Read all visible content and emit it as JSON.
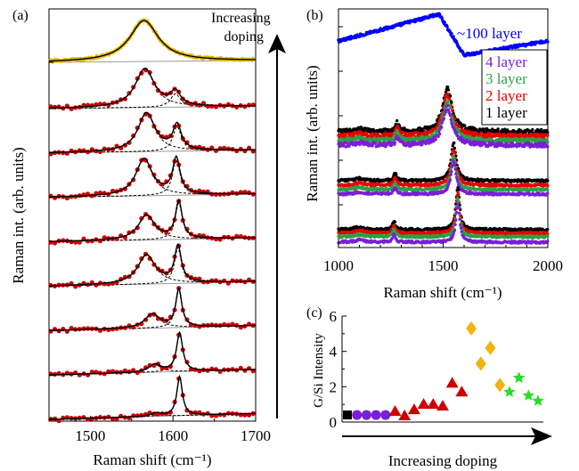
{
  "chart_data": [
    {
      "panel": "(a)",
      "type": "line",
      "xlabel": "Raman shift (cm⁻¹)",
      "ylabel": "Raman int. (arb. units)",
      "xlim": [
        1450,
        1700
      ],
      "xticks": [
        1500,
        1600,
        1700
      ],
      "annotation": "Increasing doping",
      "series": [
        {
          "trace": 1,
          "color": "#e6b800",
          "peaks": [
            {
              "center": 1565,
              "width": 42,
              "height": 1.0
            }
          ]
        },
        {
          "trace": 2,
          "color": "#cc0000",
          "peaks": [
            {
              "center": 1566,
              "width": 28,
              "height": 1.0
            },
            {
              "center": 1603,
              "width": 14,
              "height": 0.35
            }
          ]
        },
        {
          "trace": 3,
          "color": "#cc0000",
          "peaks": [
            {
              "center": 1568,
              "width": 25,
              "height": 0.85
            },
            {
              "center": 1605,
              "width": 12,
              "height": 0.55
            }
          ]
        },
        {
          "trace": 4,
          "color": "#cc0000",
          "peaks": [
            {
              "center": 1565,
              "width": 24,
              "height": 0.82
            },
            {
              "center": 1604,
              "width": 11,
              "height": 0.8
            }
          ]
        },
        {
          "trace": 5,
          "color": "#cc0000",
          "peaks": [
            {
              "center": 1568,
              "width": 24,
              "height": 0.6
            },
            {
              "center": 1607,
              "width": 10,
              "height": 0.9
            }
          ]
        },
        {
          "trace": 6,
          "color": "#cc0000",
          "peaks": [
            {
              "center": 1568,
              "width": 26,
              "height": 0.6
            },
            {
              "center": 1606,
              "width": 10,
              "height": 0.75
            }
          ]
        },
        {
          "trace": 7,
          "color": "#cc0000",
          "peaks": [
            {
              "center": 1575,
              "width": 22,
              "height": 0.35
            },
            {
              "center": 1607,
              "width": 9,
              "height": 0.95
            }
          ]
        },
        {
          "trace": 8,
          "color": "#cc0000",
          "peaks": [
            {
              "center": 1578,
              "width": 18,
              "height": 0.2
            },
            {
              "center": 1608,
              "width": 9,
              "height": 1.0
            }
          ]
        },
        {
          "trace": 9,
          "color": "#cc0000",
          "peaks": [
            {
              "center": 1580,
              "width": 15,
              "height": 0.08
            },
            {
              "center": 1608,
              "width": 8,
              "height": 1.0
            }
          ]
        }
      ]
    },
    {
      "panel": "(b)",
      "type": "line",
      "xlabel": "Raman shift (cm⁻¹)",
      "ylabel": "Raman int. (arb. units)",
      "xlim": [
        1000,
        2000
      ],
      "xticks": [
        1000,
        1500,
        2000
      ],
      "annotation": "~100 layer",
      "legend": [
        "4 layer",
        "3 layer",
        "2 layer",
        "1 layer"
      ],
      "series": [
        {
          "name": "4 layer",
          "color": "#7a1fd6"
        },
        {
          "name": "3 layer",
          "color": "#2f9e44"
        },
        {
          "name": "2 layer",
          "color": "#e60000"
        },
        {
          "name": "1 layer",
          "color": "#000000"
        }
      ],
      "groups": [
        {
          "group": "top",
          "g_center": 1520,
          "g_width": 55,
          "d_center": 1280
        },
        {
          "group": "middle",
          "g_center": 1550,
          "g_width": 30,
          "d_center": 1270
        },
        {
          "group": "bottom",
          "g_center": 1570,
          "g_width": 22,
          "d_center": 1265
        }
      ],
      "thick_trace": {
        "name": "~100 layer",
        "color": "#0000ff",
        "feature_center": 1500
      }
    },
    {
      "panel": "(c)",
      "type": "scatter",
      "xlabel": "Increasing doping",
      "ylabel": "G/Si Intensity",
      "ylim": [
        0,
        6
      ],
      "yticks": [
        0,
        2,
        4,
        6
      ],
      "series": [
        {
          "marker": "square",
          "color": "#000000",
          "points": [
            [
              1,
              0.4
            ]
          ]
        },
        {
          "marker": "circle",
          "color": "#7a1fd6",
          "points": [
            [
              2,
              0.4
            ],
            [
              3,
              0.4
            ],
            [
              4,
              0.4
            ],
            [
              5,
              0.4
            ]
          ]
        },
        {
          "marker": "triangle",
          "color": "#cc0000",
          "points": [
            [
              6,
              0.6
            ],
            [
              7,
              0.35
            ],
            [
              8,
              0.7
            ],
            [
              9,
              1.0
            ],
            [
              10,
              1.0
            ],
            [
              11,
              0.9
            ],
            [
              12,
              2.2
            ],
            [
              13,
              1.7
            ]
          ]
        },
        {
          "marker": "diamond",
          "color": "#f2b20f",
          "points": [
            [
              14,
              5.3
            ],
            [
              15,
              3.3
            ],
            [
              16,
              4.2
            ],
            [
              17,
              2.1
            ]
          ]
        },
        {
          "marker": "star",
          "color": "#22e022",
          "points": [
            [
              18,
              1.7
            ],
            [
              19,
              2.5
            ],
            [
              20,
              1.5
            ],
            [
              21,
              1.2
            ]
          ]
        }
      ]
    }
  ]
}
